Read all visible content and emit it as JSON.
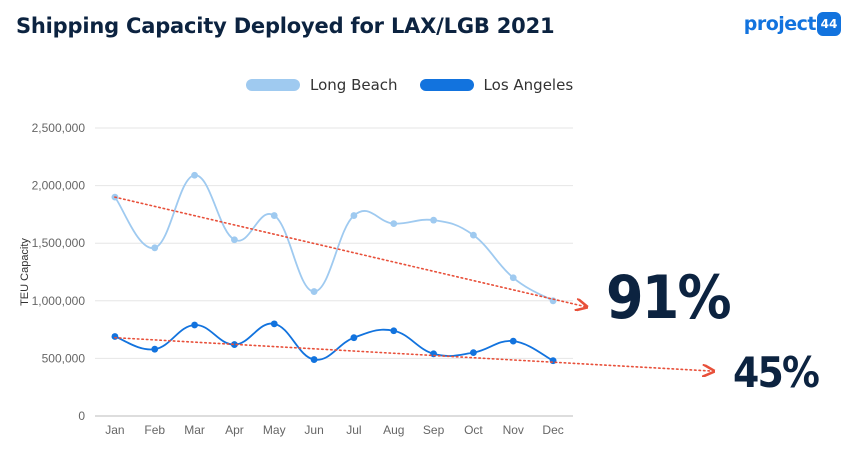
{
  "title": "Shipping Capacity Deployed for LAX/LGB 2021",
  "logo": {
    "word": "project",
    "badge": "44",
    "name": "project44-logo"
  },
  "annotations": {
    "long_beach_pct": "91%",
    "los_angeles_pct": "45%"
  },
  "colors": {
    "long_beach": "#9fcaf0",
    "los_angeles": "#1273de",
    "trend": "#e8503a",
    "title": "#0c2340"
  },
  "chart_data": {
    "type": "line",
    "title": "Shipping Capacity Deployed for LAX/LGB 2021",
    "xlabel": "",
    "ylabel": "TEU Capacity",
    "categories": [
      "Jan",
      "Feb",
      "Mar",
      "Apr",
      "May",
      "Jun",
      "Jul",
      "Aug",
      "Sep",
      "Oct",
      "Nov",
      "Dec"
    ],
    "ylim": [
      0,
      2500000
    ],
    "yticks": [
      0,
      500000,
      1000000,
      1500000,
      2000000,
      2500000
    ],
    "ytick_labels": [
      "0",
      "500,000",
      "1,000,000",
      "1,500,000",
      "2,000,000",
      "2,500,000"
    ],
    "grid": true,
    "legend_position": "top-center",
    "series": [
      {
        "name": "Long Beach",
        "values": [
          1900000,
          1460000,
          2090000,
          1530000,
          1740000,
          1080000,
          1740000,
          1670000,
          1700000,
          1570000,
          1200000,
          1000000
        ],
        "trend": {
          "from": 1900000,
          "to": 950000,
          "label": "91%"
        }
      },
      {
        "name": "Los Angeles",
        "values": [
          690000,
          580000,
          790000,
          620000,
          800000,
          490000,
          680000,
          740000,
          540000,
          550000,
          650000,
          480000
        ],
        "trend": {
          "from": 680000,
          "to": 390000,
          "label": "45%"
        }
      }
    ]
  }
}
